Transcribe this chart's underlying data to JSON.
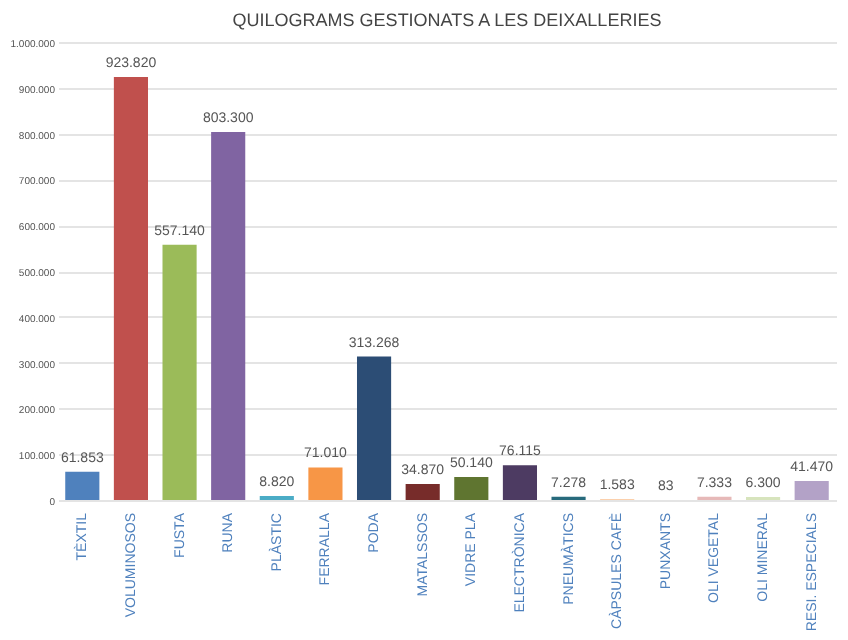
{
  "chart_data": {
    "type": "bar",
    "title": "QUILOGRAMS GESTIONATS A LES DEIXALLERIES",
    "categories": [
      "TÈXTIL",
      "VOLUMINOSOS",
      "FUSTA",
      "RUNA",
      "PLÀSTIC",
      "FERRALLA",
      "PODA",
      "MATALSSOS",
      "VIDRE PLA",
      "ELECTRÒNICA",
      "PNEUMÀTICS",
      "CÀPSULES CAFÈ",
      "PUNXANTS",
      "OLI VEGETAL",
      "OLI MINERAL",
      "RESI. ESPECIALS"
    ],
    "values": [
      61853,
      923820,
      557140,
      803300,
      8820,
      71010,
      313268,
      34870,
      50140,
      76115,
      7278,
      1583,
      83,
      7333,
      6300,
      41470
    ],
    "value_labels": [
      "61.853",
      "923.820",
      "557.140",
      "803.300",
      "8.820",
      "71.010",
      "313.268",
      "34.870",
      "50.140",
      "76.115",
      "7.278",
      "1.583",
      "83",
      "7.333",
      "6.300",
      "41.470"
    ],
    "colors": [
      "#4f81bd",
      "#c0504d",
      "#9bbb59",
      "#8064a2",
      "#4bacc6",
      "#f79646",
      "#2c4d75",
      "#772c2a",
      "#5f7530",
      "#4d3b62",
      "#276a7c",
      "#fac090",
      "#b9cde5",
      "#e6b9b8",
      "#d7e4bd",
      "#b3a2c7"
    ],
    "ylim": [
      0,
      1000000
    ],
    "yticks": [
      {
        "value": 0,
        "label": "0"
      },
      {
        "value": 100000,
        "label": "100.000"
      },
      {
        "value": 200000,
        "label": "200.000"
      },
      {
        "value": 300000,
        "label": "300.000"
      },
      {
        "value": 400000,
        "label": "400.000"
      },
      {
        "value": 500000,
        "label": "500.000"
      },
      {
        "value": 600000,
        "label": "600.000"
      },
      {
        "value": 700000,
        "label": "700.000"
      },
      {
        "value": 800000,
        "label": "800.000"
      },
      {
        "value": 900000,
        "label": "900.000"
      },
      {
        "value": 1000000,
        "label": "1.000.000"
      }
    ],
    "grid": "y"
  }
}
